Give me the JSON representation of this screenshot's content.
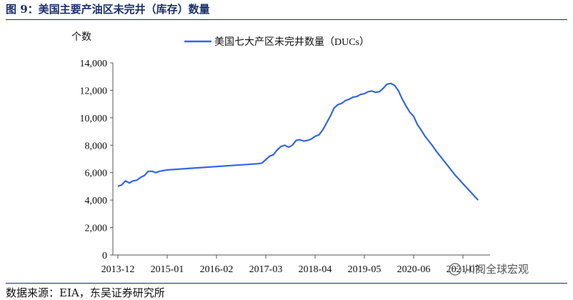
{
  "figure_title": "图 9：美国主要产油区未完井（库存）数量",
  "source_text": "数据来源：EIA，东吴证券研究所",
  "watermark": {
    "text": "川阅全球宏观",
    "icon": "wechat-icon"
  },
  "colors": {
    "line": "#3366e6",
    "title": "#1a2f6b",
    "axis": "#555555"
  },
  "chart_data": {
    "type": "line",
    "title": "",
    "xlabel": "",
    "ylabel": "个数",
    "ylim": [
      0,
      14000
    ],
    "yticks": [
      0,
      2000,
      4000,
      6000,
      8000,
      10000,
      12000,
      14000
    ],
    "ytick_labels": [
      "0",
      "2,000",
      "4,000",
      "6,000",
      "8,000",
      "10,000",
      "12,000",
      "14,000"
    ],
    "xtick_labels": [
      "2013-12",
      "2015-01",
      "2016-02",
      "2017-03",
      "2018-04",
      "2019-05",
      "2020-06",
      "2021-07"
    ],
    "legend": {
      "position": "top-center"
    },
    "grid": false,
    "series": [
      {
        "name": "美国七大产区未完井数量（DUCs）",
        "x": [
          "2013-12",
          "2014-01",
          "2014-02",
          "2014-03",
          "2014-04",
          "2014-05",
          "2014-06",
          "2014-07",
          "2014-08",
          "2014-09",
          "2014-10",
          "2014-11",
          "2014-12",
          "2015-01",
          "2017-01",
          "2017-02",
          "2017-03",
          "2017-04",
          "2017-05",
          "2017-06",
          "2017-07",
          "2017-08",
          "2017-09",
          "2017-10",
          "2017-11",
          "2017-12",
          "2018-01",
          "2018-02",
          "2018-03",
          "2018-04",
          "2018-05",
          "2018-06",
          "2018-07",
          "2018-08",
          "2018-09",
          "2018-10",
          "2018-11",
          "2018-12",
          "2019-01",
          "2019-02",
          "2019-03",
          "2019-04",
          "2019-05",
          "2019-06",
          "2019-07",
          "2019-08",
          "2019-09",
          "2019-10",
          "2019-11",
          "2019-12",
          "2020-01",
          "2020-02",
          "2020-03",
          "2020-04",
          "2020-05",
          "2020-06",
          "2020-07",
          "2020-08",
          "2020-09",
          "2020-10",
          "2020-11",
          "2020-12",
          "2021-01",
          "2021-02",
          "2021-03",
          "2021-04",
          "2021-05",
          "2021-06",
          "2021-07",
          "2021-08",
          "2021-09",
          "2021-10",
          "2021-11"
        ],
        "values": [
          5000,
          5100,
          5400,
          5250,
          5400,
          5450,
          5650,
          5800,
          6100,
          6100,
          6000,
          6100,
          6150,
          6200,
          6650,
          6700,
          6950,
          7200,
          7300,
          7650,
          7900,
          8000,
          7850,
          8000,
          8350,
          8400,
          8300,
          8350,
          8450,
          8650,
          8750,
          9100,
          9600,
          10100,
          10700,
          10950,
          11050,
          11250,
          11350,
          11500,
          11550,
          11700,
          11750,
          11900,
          11950,
          11850,
          11900,
          12150,
          12450,
          12500,
          12350,
          11950,
          11350,
          10850,
          10400,
          10100,
          9500,
          9100,
          8650,
          8300,
          7950,
          7550,
          7200,
          6850,
          6500,
          6150,
          5800,
          5500,
          5200,
          4900,
          4600,
          4300,
          4000
        ]
      }
    ]
  }
}
